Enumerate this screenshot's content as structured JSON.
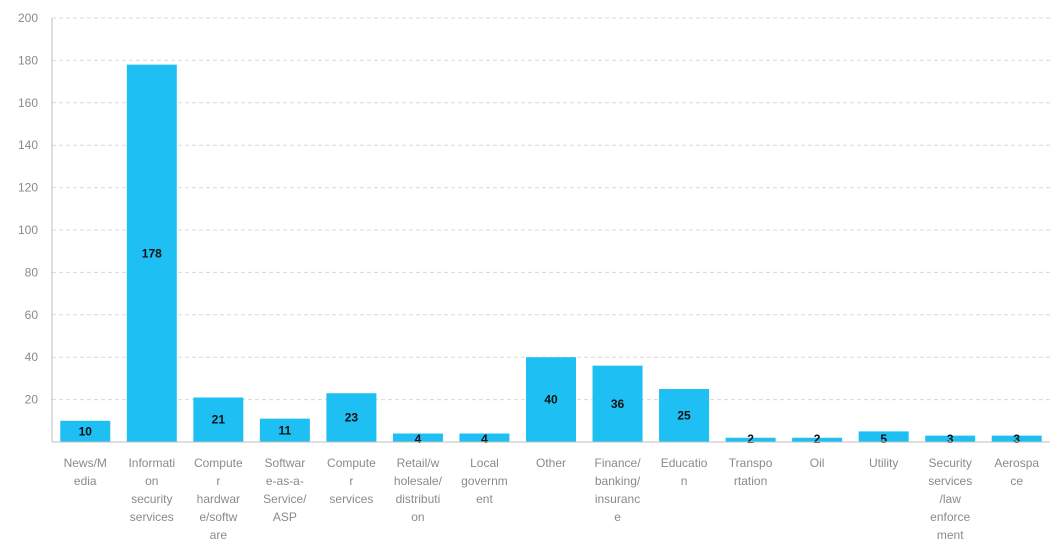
{
  "chart_data": {
    "type": "bar",
    "title": "",
    "xlabel": "",
    "ylabel": "",
    "ylim": [
      0,
      200
    ],
    "yticks": [
      20,
      40,
      60,
      80,
      100,
      120,
      140,
      160,
      180,
      200
    ],
    "grid": true,
    "legend": "none",
    "bar_color": "#1ebff2",
    "categories": [
      [
        "News/M",
        "edia"
      ],
      [
        "Informati",
        "on",
        "security",
        "services"
      ],
      [
        "Compute",
        "r",
        "hardwar",
        "e/softw",
        "are"
      ],
      [
        "Softwar",
        "e-as-a-",
        "Service/",
        "ASP"
      ],
      [
        "Compute",
        "r",
        "services"
      ],
      [
        "Retail/w",
        "holesale/",
        "distributi",
        "on"
      ],
      [
        "Local",
        "governm",
        "ent"
      ],
      [
        "Other"
      ],
      [
        "Finance/",
        "banking/",
        "insuranc",
        "e"
      ],
      [
        "Educatio",
        "n"
      ],
      [
        "Transpo",
        "rtation"
      ],
      [
        "Oil"
      ],
      [
        "Utility"
      ],
      [
        "Security",
        "services",
        "/law",
        "enforce",
        "ment"
      ],
      [
        "Aerospa",
        "ce"
      ]
    ],
    "values": [
      10,
      178,
      21,
      11,
      23,
      4,
      4,
      40,
      36,
      25,
      2,
      2,
      5,
      3,
      3
    ]
  }
}
